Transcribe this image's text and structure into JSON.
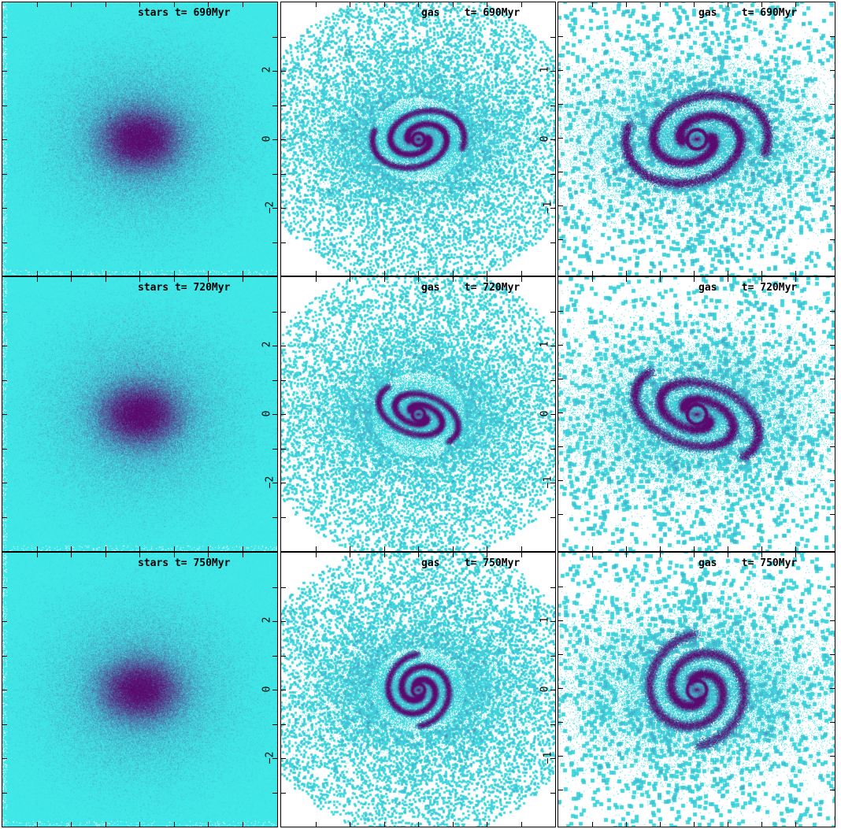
{
  "panels": [
    {
      "label": "stars t= 690Myr",
      "kind": "stars",
      "row": 0,
      "col": 0
    },
    {
      "label": "gas    t= 690Myr",
      "kind": "gas_ring",
      "row": 0,
      "col": 1
    },
    {
      "label": "gas    t= 690Myr",
      "kind": "gas_zoom_ring",
      "row": 0,
      "col": 2
    },
    {
      "label": "stars t= 720Myr",
      "kind": "stars",
      "row": 1,
      "col": 0
    },
    {
      "label": "gas    t= 720Myr",
      "kind": "gas_bar",
      "row": 1,
      "col": 1
    },
    {
      "label": "gas    t= 720Myr",
      "kind": "gas_zoom_bar",
      "row": 1,
      "col": 2
    },
    {
      "label": "stars t= 750Myr",
      "kind": "stars",
      "row": 2,
      "col": 0
    },
    {
      "label": "gas    t= 750Myr",
      "kind": "gas_spiral",
      "row": 2,
      "col": 1
    },
    {
      "label": "gas    t= 750Myr",
      "kind": "gas_zoom_spiral",
      "row": 2,
      "col": 2
    }
  ],
  "axes": {
    "col1_ticks": [
      "2",
      "0",
      "−2"
    ],
    "col2_ticks": [
      "1",
      "0",
      "−1"
    ]
  },
  "colors": {
    "low": "#40e8e8",
    "high": "#5a0a6e",
    "background": "#ffffff"
  }
}
